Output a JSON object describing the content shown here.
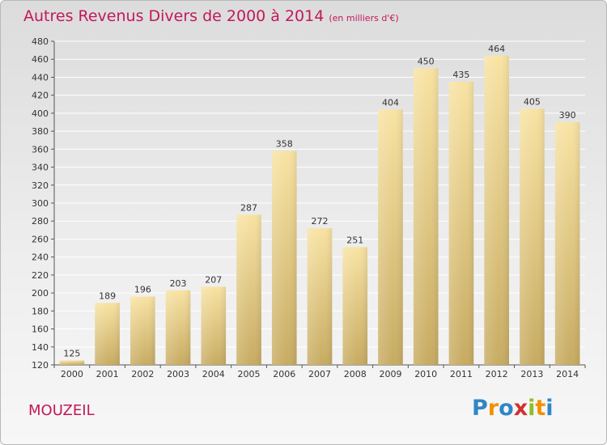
{
  "title": "Autres Revenus Divers de 2000 à 2014",
  "subtitle": "(en milliers d'€)",
  "place": "MOUZEIL",
  "logo": {
    "text": "Proxiti",
    "letters": [
      {
        "ch": "P",
        "color": "#2f86c6"
      },
      {
        "ch": "r",
        "color": "#f29100"
      },
      {
        "ch": "o",
        "color": "#2f86c6"
      },
      {
        "ch": "x",
        "color": "#d22f2f"
      },
      {
        "ch": "i",
        "color": "#8cbf26"
      },
      {
        "ch": "t",
        "color": "#f29100"
      },
      {
        "ch": "i",
        "color": "#2f86c6"
      }
    ]
  },
  "colors": {
    "accent": "#c2185b",
    "bar_top": "#f8e3a3",
    "bar_bottom": "#c7ab62",
    "grid": "#ffffff"
  },
  "chart_data": {
    "type": "bar",
    "categories": [
      "2000",
      "2001",
      "2002",
      "2003",
      "2004",
      "2005",
      "2006",
      "2007",
      "2008",
      "2009",
      "2010",
      "2011",
      "2012",
      "2013",
      "2014"
    ],
    "values": [
      125,
      189,
      196,
      203,
      207,
      287,
      358,
      272,
      251,
      404,
      450,
      435,
      464,
      405,
      390
    ],
    "title": "Autres Revenus Divers de 2000 à 2014",
    "xlabel": "",
    "ylabel": "",
    "ylim": [
      120,
      480
    ],
    "yticks": [
      120,
      140,
      160,
      180,
      200,
      220,
      240,
      260,
      280,
      300,
      320,
      340,
      360,
      380,
      400,
      420,
      440,
      460,
      480
    ],
    "grid": true,
    "legend": "none"
  }
}
